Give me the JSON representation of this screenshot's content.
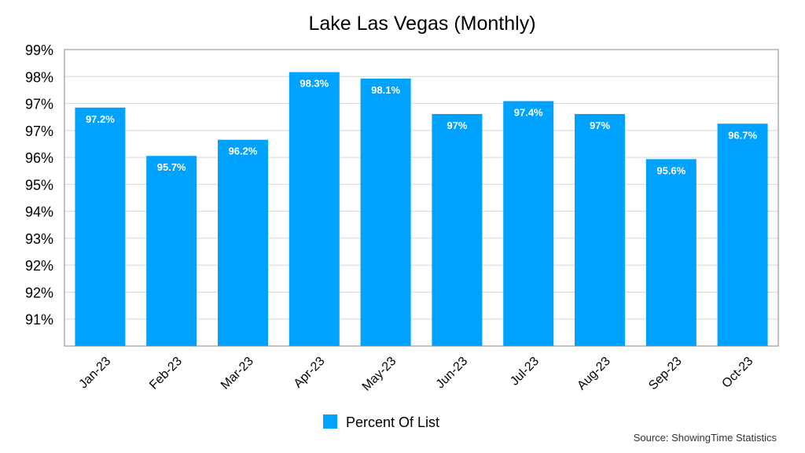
{
  "chart_data": {
    "type": "bar",
    "title": "Lake Las Vegas (Monthly)",
    "categories": [
      "Jan-23",
      "Feb-23",
      "Mar-23",
      "Apr-23",
      "May-23",
      "Jun-23",
      "Jul-23",
      "Aug-23",
      "Sep-23",
      "Oct-23"
    ],
    "series": [
      {
        "name": "Percent Of List",
        "values": [
          97.2,
          95.7,
          96.2,
          98.3,
          98.1,
          97,
          97.4,
          97,
          95.6,
          96.7
        ],
        "labels": [
          "97.2%",
          "95.7%",
          "96.2%",
          "98.3%",
          "98.1%",
          "97%",
          "97.4%",
          "97%",
          "95.6%",
          "96.7%"
        ],
        "color": "#00A2FF"
      }
    ],
    "ytick_labels": [
      "99%",
      "98%",
      "97%",
      "97%",
      "96%",
      "95%",
      "94%",
      "93%",
      "92%",
      "92%",
      "91%"
    ],
    "ylim": [
      89.8,
      99.0
    ],
    "xlabel": "",
    "ylabel": "",
    "grid": true,
    "legend": "bottom-center",
    "source": "Source: ShowingTime Statistics"
  }
}
